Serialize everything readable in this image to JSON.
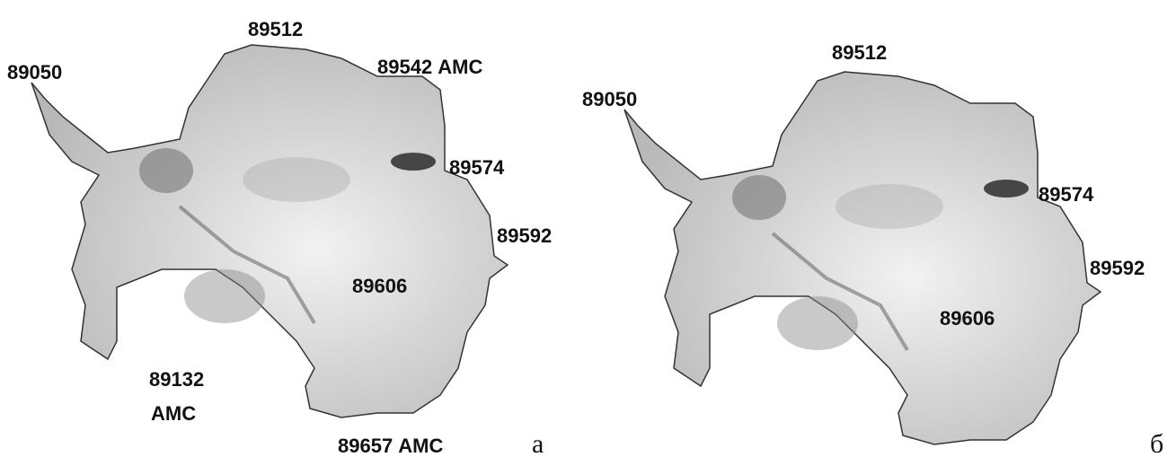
{
  "panels": [
    {
      "labels": [
        "89050",
        "89512",
        "89542 АМС",
        "89574",
        "89592",
        "89606",
        "89132",
        "АМС",
        "89657 АМС"
      ],
      "caption": "а"
    },
    {
      "labels": [
        "89050",
        "89512",
        "89574",
        "89592",
        "89606"
      ],
      "caption": "б"
    }
  ]
}
